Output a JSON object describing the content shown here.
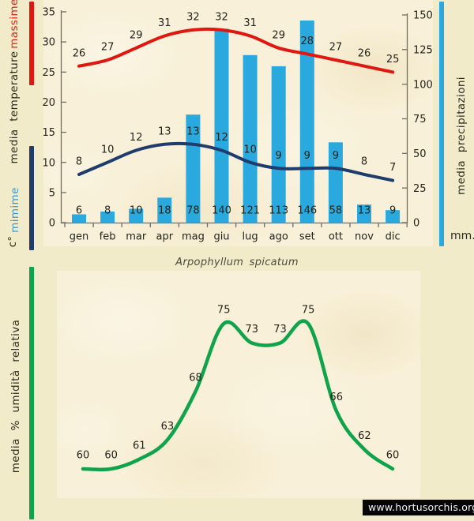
{
  "watermark": "www.hortusorchis.org",
  "colors": {
    "page_bg": "#f2ebca",
    "plot_bg": "#f8f0d8",
    "axis": "#6e6e66",
    "text": "#24241c",
    "massime_text": "#e02015",
    "mimime_text": "#3e98d3",
    "watermark_bg": "#060606",
    "watermark_text": "#f2f2f2"
  },
  "chart_data": [
    {
      "type": "bar+line",
      "categories": [
        "gen",
        "feb",
        "mar",
        "apr",
        "mag",
        "giu",
        "lug",
        "ago",
        "set",
        "ott",
        "nov",
        "dic"
      ],
      "series": [
        {
          "name": "massime",
          "kind": "line",
          "axis": "temperature",
          "color": "#df1710",
          "values": [
            26,
            27,
            29,
            31,
            32,
            32,
            31,
            29,
            28,
            27,
            26,
            25
          ]
        },
        {
          "name": "mimime",
          "kind": "line",
          "axis": "temperature",
          "color": "#1f3c6d",
          "values": [
            8,
            10,
            12,
            13,
            13,
            12,
            10,
            9,
            9,
            9,
            8,
            7
          ]
        },
        {
          "name": "media precipitazioni",
          "kind": "bar",
          "axis": "precipitation",
          "color": "#2aa9de",
          "values": [
            6,
            8,
            10,
            18,
            78,
            140,
            121,
            113,
            146,
            58,
            13,
            9
          ]
        }
      ],
      "axes": {
        "temperature": {
          "side": "left",
          "label": "media temperature",
          "unit": "c°",
          "max_label": "massime",
          "min_label": "mimime",
          "ticks": [
            0,
            5,
            10,
            15,
            20,
            25,
            30,
            35
          ],
          "range": [
            0,
            35
          ]
        },
        "precipitation": {
          "side": "right",
          "label": "media precipitazioni",
          "unit": "mm.",
          "ticks": [
            0,
            25,
            50,
            75,
            100,
            125,
            150
          ],
          "range": [
            0,
            150
          ]
        }
      },
      "grid": false,
      "legend": "vertical-side-labels"
    },
    {
      "type": "line",
      "title": "Arpophyllum spicatum",
      "ylabel": "media % umidità relativa",
      "series": [
        {
          "name": "media % umidità relativa",
          "color": "#0fa44c",
          "values": [
            60,
            60,
            61,
            63,
            68,
            75,
            73,
            73,
            75,
            66,
            62,
            60
          ]
        }
      ],
      "grid": false,
      "legend": "none"
    }
  ]
}
